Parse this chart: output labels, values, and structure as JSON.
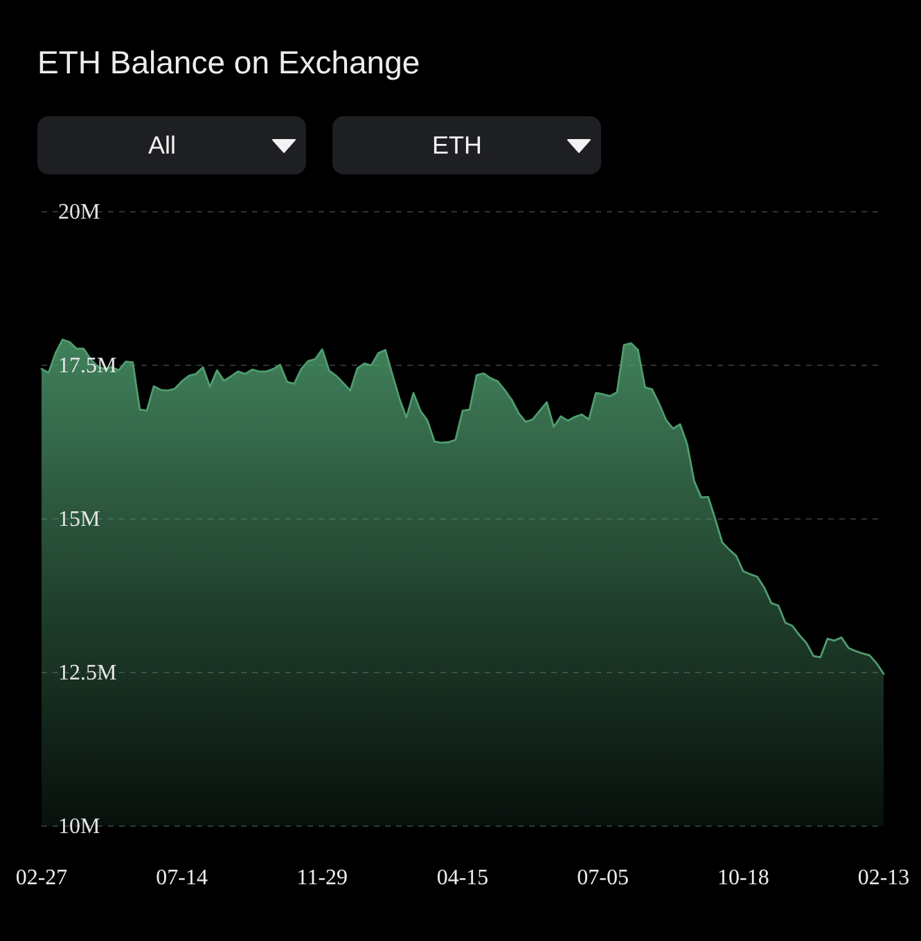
{
  "chart_data": {
    "type": "area",
    "title": "ETH Balance on Exchange",
    "annotations": [
      "All",
      "ETH"
    ],
    "categories": [
      "02-27",
      null,
      null,
      null,
      null,
      null,
      null,
      null,
      null,
      null,
      null,
      null,
      null,
      null,
      null,
      null,
      null,
      null,
      null,
      null,
      "07-14",
      null,
      null,
      null,
      null,
      null,
      null,
      null,
      null,
      null,
      null,
      null,
      null,
      null,
      null,
      null,
      null,
      null,
      null,
      null,
      "11-29",
      null,
      null,
      null,
      null,
      null,
      null,
      null,
      null,
      null,
      null,
      null,
      null,
      null,
      null,
      null,
      null,
      null,
      null,
      null,
      "04-15",
      null,
      null,
      null,
      null,
      null,
      null,
      null,
      null,
      null,
      null,
      null,
      null,
      null,
      null,
      null,
      null,
      null,
      null,
      null,
      "07-05",
      null,
      null,
      null,
      null,
      null,
      null,
      null,
      null,
      null,
      null,
      null,
      null,
      null,
      null,
      null,
      null,
      null,
      null,
      null,
      "10-18",
      null,
      null,
      null,
      null,
      null,
      null,
      null,
      null,
      null,
      null,
      null,
      null,
      null,
      null,
      null,
      null,
      null,
      null,
      null,
      "02-13"
    ],
    "values": [
      17.44,
      17.38,
      17.7,
      17.92,
      17.88,
      17.77,
      17.77,
      17.6,
      17.48,
      17.44,
      17.47,
      17.42,
      17.56,
      17.55,
      16.78,
      16.76,
      17.16,
      17.1,
      17.09,
      17.12,
      17.24,
      17.33,
      17.36,
      17.47,
      17.15,
      17.42,
      17.25,
      17.32,
      17.4,
      17.36,
      17.43,
      17.4,
      17.4,
      17.44,
      17.51,
      17.23,
      17.2,
      17.44,
      17.57,
      17.6,
      17.76,
      17.41,
      17.33,
      17.21,
      17.09,
      17.45,
      17.53,
      17.5,
      17.7,
      17.75,
      17.35,
      16.96,
      16.65,
      17.05,
      16.76,
      16.6,
      16.26,
      16.24,
      16.25,
      16.29,
      16.76,
      16.78,
      17.34,
      17.37,
      17.29,
      17.24,
      17.1,
      16.94,
      16.72,
      16.58,
      16.62,
      16.76,
      16.9,
      16.5,
      16.67,
      16.6,
      16.66,
      16.7,
      16.62,
      17.05,
      17.03,
      17.0,
      17.06,
      17.83,
      17.86,
      17.75,
      17.14,
      17.11,
      16.88,
      16.61,
      16.47,
      16.54,
      16.22,
      15.62,
      15.35,
      15.36,
      15.0,
      14.62,
      14.5,
      14.4,
      14.15,
      14.1,
      14.06,
      13.88,
      13.63,
      13.59,
      13.31,
      13.26,
      13.11,
      12.98,
      12.77,
      12.75,
      13.05,
      13.02,
      13.07,
      12.9,
      12.85,
      12.81,
      12.78,
      12.65,
      12.48
    ],
    "color": "#4f9d6f",
    "ylim": [
      10,
      20
    ],
    "yticks": [
      {
        "value": 10,
        "label": "10M"
      },
      {
        "value": 12.5,
        "label": "12.5M"
      },
      {
        "value": 15,
        "label": "15M"
      },
      {
        "value": 17.5,
        "label": "17.5M"
      },
      {
        "value": 20,
        "label": "20M"
      }
    ],
    "grid": "y"
  }
}
